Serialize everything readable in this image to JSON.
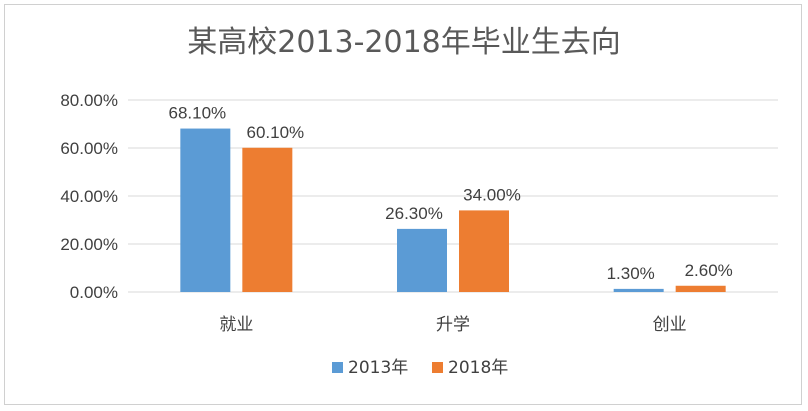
{
  "chart_data": {
    "type": "bar",
    "title": "某高校2013-2018年毕业生去向",
    "categories": [
      "就业",
      "升学",
      "创业"
    ],
    "series": [
      {
        "name": "2013年",
        "values": [
          68.1,
          26.3,
          1.3
        ],
        "color": "#5b9bd5",
        "labels": [
          "68.10%",
          "26.30%",
          "1.30%"
        ]
      },
      {
        "name": "2018年",
        "values": [
          60.1,
          34.0,
          2.6
        ],
        "color": "#ed7d31",
        "labels": [
          "60.10%",
          "34.00%",
          "2.60%"
        ]
      }
    ],
    "ylim": [
      0,
      80
    ],
    "yticks": [
      0,
      20,
      40,
      60,
      80
    ],
    "ytick_labels": [
      "0.00%",
      "20.00%",
      "40.00%",
      "60.00%",
      "80.00%"
    ],
    "xlabel": "",
    "ylabel": "",
    "grid": true,
    "legend_position": "bottom"
  }
}
